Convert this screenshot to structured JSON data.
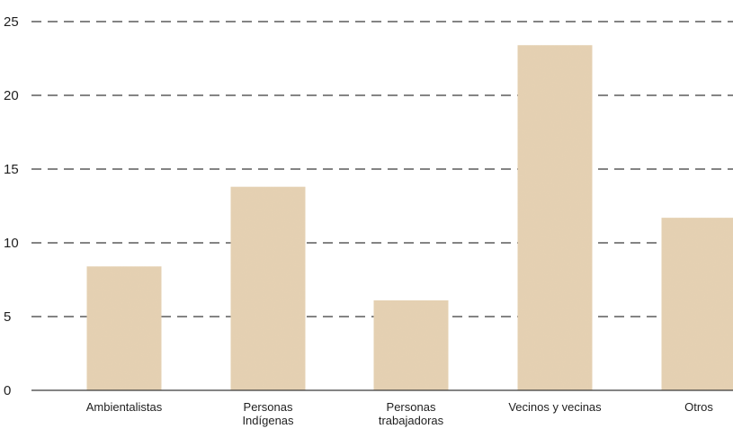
{
  "chart_data": {
    "type": "bar",
    "categories": [
      "Ambientalistas",
      "Personas Indígenas",
      "Personas trabajadoras",
      "Vecinos y vecinas",
      "Otros"
    ],
    "category_label_lines": [
      [
        "Ambientalistas"
      ],
      [
        "Personas",
        "Indígenas"
      ],
      [
        "Personas",
        "trabajadoras"
      ],
      [
        "Vecinos y vecinas"
      ],
      [
        "Otros"
      ]
    ],
    "values": [
      8.4,
      13.8,
      6.1,
      23.4,
      11.7
    ],
    "ylim": [
      0,
      25
    ],
    "yticks": [
      0,
      5,
      10,
      15,
      20,
      25
    ],
    "grid": true,
    "title": "",
    "xlabel": "",
    "ylabel": "",
    "colors": {
      "bar": "#e6d2b4",
      "grid": "#3a3a3a",
      "text": "#1f1f1f"
    }
  }
}
